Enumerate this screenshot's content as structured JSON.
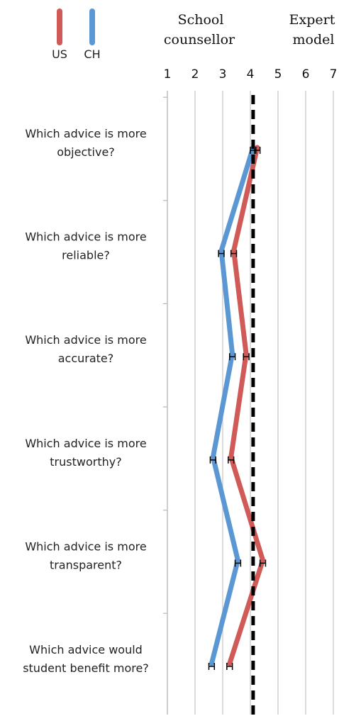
{
  "chart_data": {
    "type": "line",
    "orientation": "horizontal",
    "x_axis": {
      "min": 1,
      "max": 7,
      "ticks": [
        "1",
        "2",
        "3",
        "4",
        "5",
        "6",
        "7"
      ],
      "position": "top",
      "grid": true
    },
    "anchors": {
      "left": [
        "School",
        "counsellor"
      ],
      "right": [
        "Expert",
        "model"
      ]
    },
    "reference_line": {
      "x": 4.1,
      "style": "dashed",
      "color": "#000000"
    },
    "categories": [
      [
        "Which advice is more",
        "objective?"
      ],
      [
        "Which advice is more",
        "reliable?"
      ],
      [
        "Which advice is more",
        "accurate?"
      ],
      [
        "Which advice is more",
        "trustworthy?"
      ],
      [
        "Which advice is more",
        "transparent?"
      ],
      [
        "Which advice would",
        "student benefit more?"
      ]
    ],
    "series": [
      {
        "name": "US",
        "color": "#d05a57",
        "values": [
          4.25,
          3.4,
          3.85,
          3.3,
          4.45,
          3.25
        ],
        "error": [
          0.1,
          0.1,
          0.1,
          0.1,
          0.1,
          0.1
        ]
      },
      {
        "name": "CH",
        "color": "#5b98d3",
        "values": [
          4.1,
          2.95,
          3.35,
          2.65,
          3.55,
          2.6
        ],
        "error": [
          0.1,
          0.1,
          0.1,
          0.1,
          0.1,
          0.1
        ]
      }
    ],
    "legend": {
      "position": "top-left"
    }
  }
}
